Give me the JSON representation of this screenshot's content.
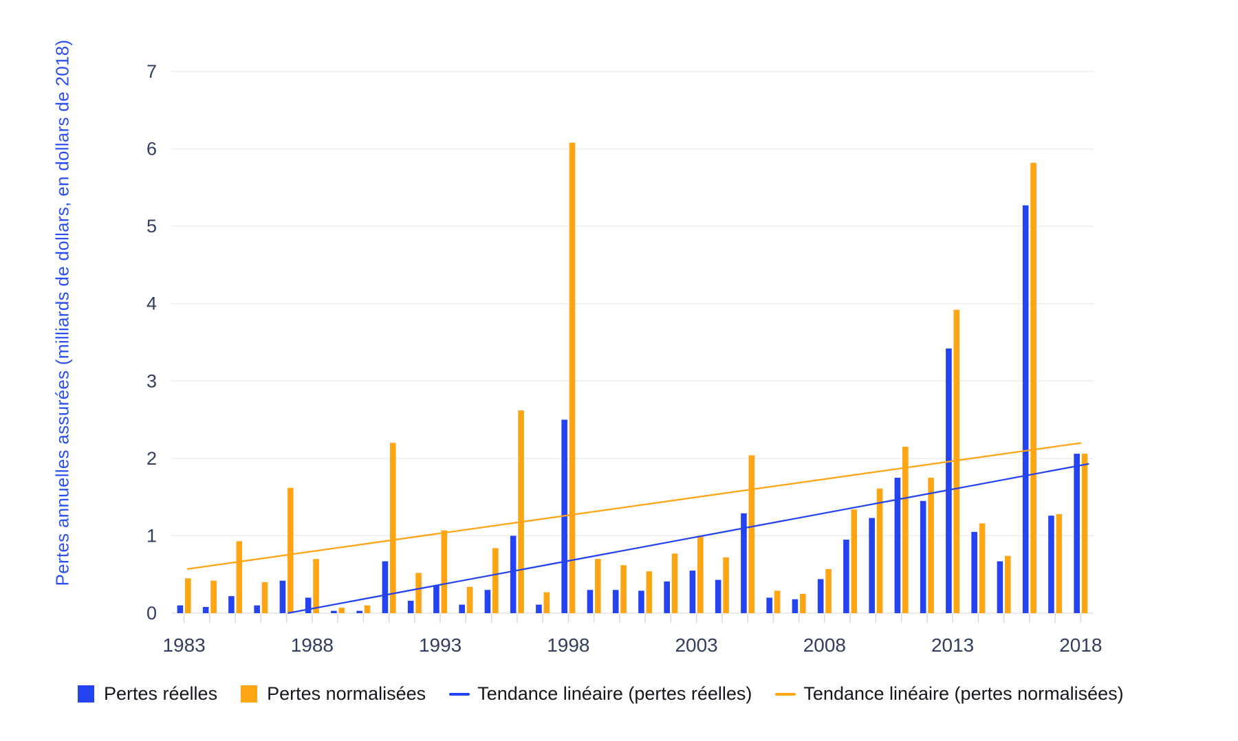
{
  "chart_data": {
    "type": "bar",
    "title": "",
    "xlabel": "",
    "ylabel": "Pertes annuelles assurées (milliards de dollars, en dollars de 2018)",
    "ylim": [
      0,
      7
    ],
    "y_ticks": [
      0,
      1,
      2,
      3,
      4,
      5,
      6,
      7
    ],
    "grid": true,
    "legend_position": "bottom-left",
    "categories": [
      1983,
      1984,
      1985,
      1986,
      1987,
      1988,
      1989,
      1990,
      1991,
      1992,
      1993,
      1994,
      1995,
      1996,
      1997,
      1998,
      1999,
      2000,
      2001,
      2002,
      2003,
      2004,
      2005,
      2006,
      2007,
      2008,
      2009,
      2010,
      2011,
      2012,
      2013,
      2014,
      2015,
      2016,
      2017,
      2018
    ],
    "x_tick_labels": [
      1983,
      1988,
      1993,
      1998,
      2003,
      2008,
      2013,
      2018
    ],
    "series": [
      {
        "name": "Pertes réelles",
        "color": "#2543F0",
        "values": [
          0.1,
          0.08,
          0.22,
          0.1,
          0.42,
          0.2,
          0.03,
          0.03,
          0.67,
          0.16,
          0.36,
          0.11,
          0.3,
          1.0,
          0.11,
          2.5,
          0.3,
          0.3,
          0.29,
          0.41,
          0.55,
          0.43,
          1.29,
          0.2,
          0.18,
          0.44,
          0.95,
          1.23,
          1.75,
          1.45,
          3.42,
          1.05,
          0.67,
          5.27,
          1.26,
          2.06
        ]
      },
      {
        "name": "Pertes normalisées",
        "color": "#FFA413",
        "values": [
          0.45,
          0.42,
          0.93,
          0.4,
          1.62,
          0.7,
          0.07,
          0.1,
          2.2,
          0.52,
          1.07,
          0.34,
          0.84,
          2.62,
          0.27,
          6.08,
          0.7,
          0.62,
          0.54,
          0.77,
          1.0,
          0.72,
          2.04,
          0.29,
          0.25,
          0.57,
          1.34,
          1.61,
          2.15,
          1.75,
          3.92,
          1.16,
          0.74,
          5.82,
          1.28,
          2.06
        ]
      }
    ],
    "trend_lines": [
      {
        "name": "Tendance linéaire (pertes réelles)",
        "color": "#2543F0",
        "start": {
          "year": 1987.05,
          "value": 0.0
        },
        "end": {
          "year": 2018.32,
          "value": 1.93
        }
      },
      {
        "name": "Tendance linéaire (pertes normalisées)",
        "color": "#FFA413",
        "start": {
          "year": 1983.12,
          "value": 0.57
        },
        "end": {
          "year": 2018.02,
          "value": 2.2
        }
      }
    ]
  },
  "legend": [
    {
      "label": "Pertes réelles",
      "swatch": "square",
      "color": "#2543F0"
    },
    {
      "label": "Pertes normalisées",
      "swatch": "square",
      "color": "#FFA413"
    },
    {
      "label": "Tendance linéaire (pertes réelles)",
      "swatch": "line",
      "color": "#2543F0"
    },
    {
      "label": "Tendance linéaire (pertes normalisées)",
      "swatch": "line",
      "color": "#FFA413"
    }
  ],
  "colors": {
    "background": "#FFFFFF",
    "bar_blue": "#2543F0",
    "bar_orange": "#FFA413",
    "axis_title": "#2B4FF2",
    "tick_label": "#333D5E",
    "gridline": "#EDEDED",
    "baseline": "#E2E2E2",
    "tick_mark": "#D9D9D9",
    "legend_text": "#15171E"
  }
}
